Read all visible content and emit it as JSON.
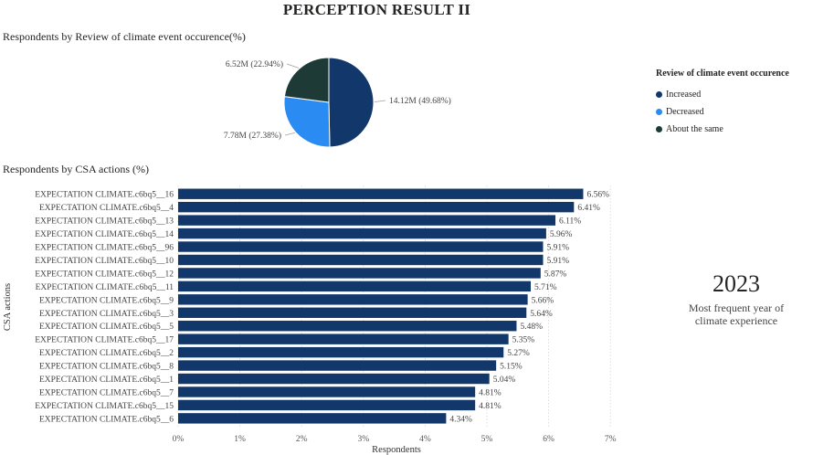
{
  "page": {
    "title": "PERCEPTION RESULT  II"
  },
  "pie_title": "Respondents by Review of climate event occurence(%)",
  "bar_title": "Respondents by CSA actions (%)",
  "legend": {
    "title": "Review of climate event occurence",
    "items": [
      {
        "label": "Increased",
        "color": "#12386b"
      },
      {
        "label": "Decreased",
        "color": "#2a8bf2"
      },
      {
        "label": "About the same",
        "color": "#1d3a36"
      }
    ]
  },
  "kpi": {
    "value": "2023",
    "label_line1": "Most frequent year of",
    "label_line2": "climate experience"
  },
  "chart_data": [
    {
      "type": "pie",
      "title": "Respondents by Review of climate event occurence(%)",
      "legend_title": "Review of climate event occurence",
      "legend_position": "right",
      "slices": [
        {
          "name": "Increased",
          "value": 14.12,
          "percent": 49.68,
          "label": "14.12M (49.68%)",
          "color": "#12386b"
        },
        {
          "name": "Decreased",
          "value": 7.78,
          "percent": 27.38,
          "label": "7.78M (27.38%)",
          "color": "#2a8bf2"
        },
        {
          "name": "About the same",
          "value": 6.52,
          "percent": 22.94,
          "label": "6.52M (22.94%)",
          "color": "#1d3a36"
        }
      ]
    },
    {
      "type": "bar",
      "orientation": "horizontal",
      "title": "Respondents by CSA actions (%)",
      "xlabel": "Respondents",
      "ylabel": "CSA actions",
      "xlim": [
        0,
        7
      ],
      "xticks": [
        "0%",
        "1%",
        "2%",
        "3%",
        "4%",
        "5%",
        "6%",
        "7%"
      ],
      "grid": true,
      "bar_color": "#12386b",
      "categories": [
        "EXPECTATION CLIMATE.c6bq5__16",
        "EXPECTATION CLIMATE.c6bq5__4",
        "EXPECTATION CLIMATE.c6bq5__13",
        "EXPECTATION CLIMATE.c6bq5__14",
        "EXPECTATION CLIMATE.c6bq5__96",
        "EXPECTATION CLIMATE.c6bq5__10",
        "EXPECTATION CLIMATE.c6bq5__12",
        "EXPECTATION CLIMATE.c6bq5__11",
        "EXPECTATION CLIMATE.c6bq5__9",
        "EXPECTATION CLIMATE.c6bq5__3",
        "EXPECTATION CLIMATE.c6bq5__5",
        "EXPECTATION CLIMATE.c6bq5__17",
        "EXPECTATION CLIMATE.c6bq5__2",
        "EXPECTATION CLIMATE.c6bq5__8",
        "EXPECTATION CLIMATE.c6bq5__1",
        "EXPECTATION CLIMATE.c6bq5__7",
        "EXPECTATION CLIMATE.c6bq5__15",
        "EXPECTATION CLIMATE.c6bq5__6"
      ],
      "values": [
        6.56,
        6.41,
        6.11,
        5.96,
        5.91,
        5.91,
        5.87,
        5.71,
        5.66,
        5.64,
        5.48,
        5.35,
        5.27,
        5.15,
        5.04,
        4.81,
        4.81,
        4.34
      ],
      "value_labels": [
        "6.56%",
        "6.41%",
        "6.11%",
        "5.96%",
        "5.91%",
        "5.91%",
        "5.87%",
        "5.71%",
        "5.66%",
        "5.64%",
        "5.48%",
        "5.35%",
        "5.27%",
        "5.15%",
        "5.04%",
        "4.81%",
        "4.81%",
        "4.34%"
      ]
    }
  ]
}
